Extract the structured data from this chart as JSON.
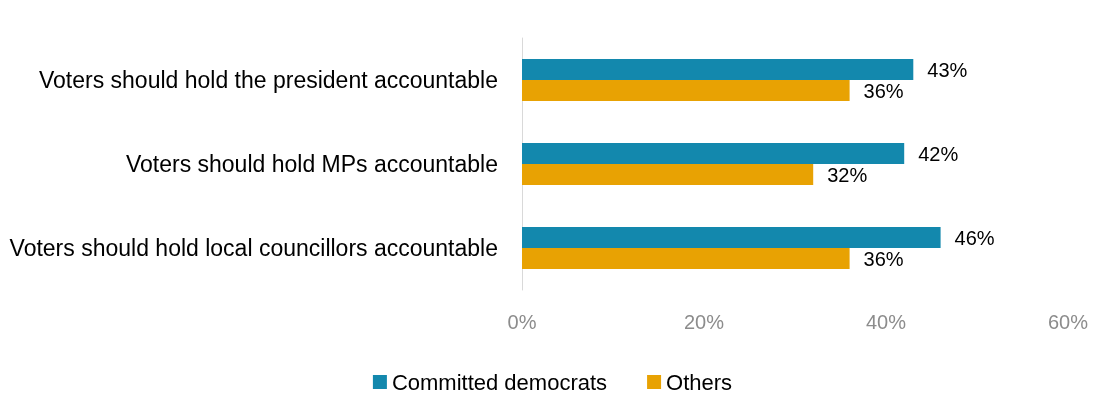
{
  "chart_data": {
    "type": "bar",
    "orientation": "horizontal",
    "categories": [
      "Voters should hold the president accountable",
      "Voters should hold MPs accountable",
      "Voters should hold local councillors accountable"
    ],
    "series": [
      {
        "name": "Committed democrats",
        "color": "#1388ad",
        "values": [
          43,
          42,
          46
        ],
        "value_labels": [
          "43%",
          "42%",
          "46%"
        ]
      },
      {
        "name": "Others",
        "color": "#e8a203",
        "values": [
          36,
          32,
          36
        ],
        "value_labels": [
          "36%",
          "32%",
          "36%"
        ]
      }
    ],
    "xlim": [
      0,
      60
    ],
    "xticks": [
      {
        "value": 0,
        "label": "0%"
      },
      {
        "value": 20,
        "label": "20%"
      },
      {
        "value": 40,
        "label": "40%"
      },
      {
        "value": 60,
        "label": "60%"
      }
    ],
    "grid": false,
    "legend": "bottom"
  }
}
